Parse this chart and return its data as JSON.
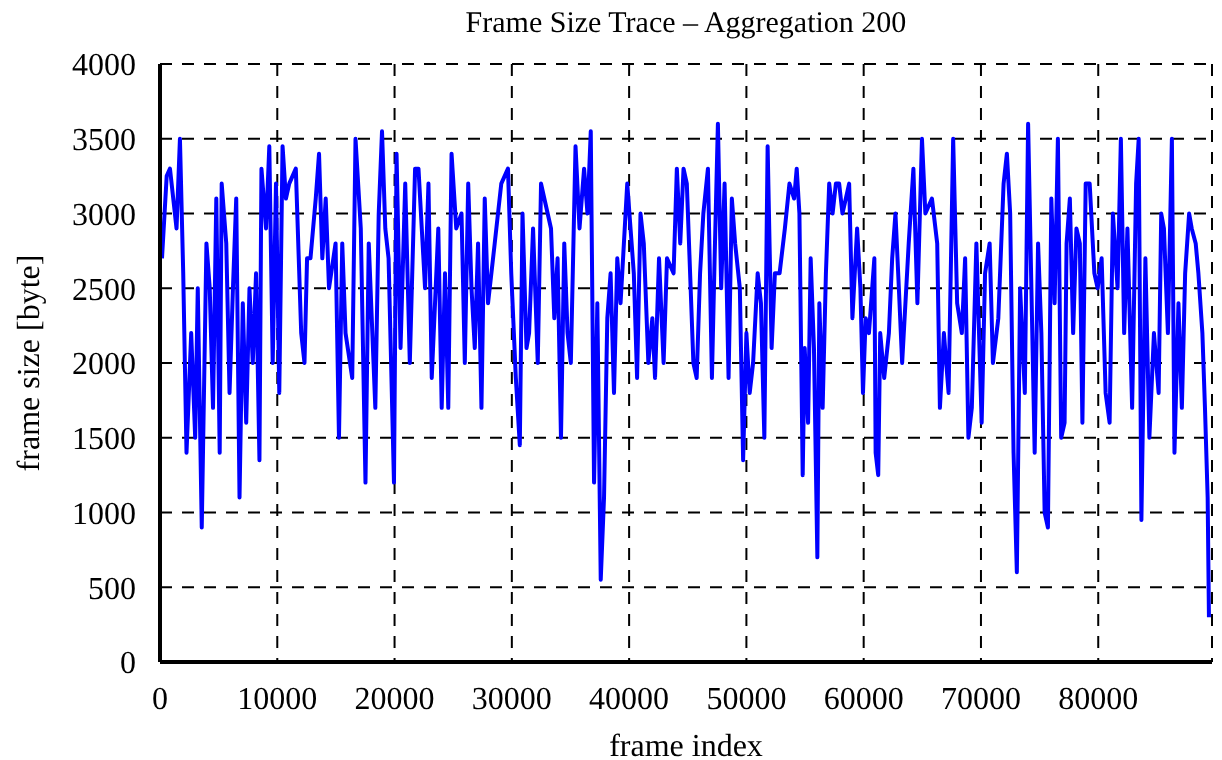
{
  "chart_data": {
    "type": "line",
    "title": "Frame Size Trace – Aggregation 200",
    "xlabel": "frame index",
    "ylabel": "frame size [byte]",
    "xlim": [
      0,
      89700
    ],
    "ylim": [
      0,
      4000
    ],
    "xticks": [
      0,
      10000,
      20000,
      30000,
      40000,
      50000,
      60000,
      70000,
      80000
    ],
    "yticks": [
      0,
      500,
      1000,
      1500,
      2000,
      2500,
      3000,
      3500,
      4000
    ],
    "grid": true,
    "legend": false,
    "marker": "none",
    "line_style": "solid",
    "series": [
      {
        "color": "#0000ff",
        "x": [
          170,
          570,
          850,
          1410,
          1700,
          1980,
          2260,
          2660,
          3000,
          3220,
          3560,
          3960,
          4240,
          4520,
          4800,
          5090,
          5260,
          5650,
          5930,
          6220,
          6500,
          6780,
          7060,
          7350,
          7630,
          7910,
          8190,
          8480,
          8650,
          9040,
          9320,
          9610,
          9890,
          10170,
          10450,
          10740,
          11020,
          11580,
          12040,
          12320,
          12540,
          12830,
          13280,
          13560,
          13840,
          14130,
          14410,
          14970,
          15260,
          15540,
          15820,
          16390,
          16670,
          17120,
          17520,
          17800,
          18360,
          18650,
          18930,
          19210,
          19490,
          19950,
          20170,
          20510,
          20910,
          21300,
          21750,
          22040,
          22600,
          22890,
          23170,
          23730,
          24020,
          24300,
          24580,
          24860,
          25260,
          25710,
          25990,
          26280,
          26560,
          26840,
          27120,
          27410,
          27690,
          27970,
          28540,
          29100,
          29670,
          29950,
          30340,
          30680,
          30910,
          31250,
          31470,
          31810,
          32210,
          32490,
          32770,
          33340,
          33620,
          33900,
          34190,
          34470,
          34750,
          35030,
          35430,
          35770,
          36160,
          36450,
          36730,
          37010,
          37290,
          37580,
          37860,
          38140,
          38420,
          38710,
          38990,
          39270,
          39840,
          40400,
          40680,
          40970,
          41250,
          41640,
          41980,
          42210,
          42550,
          42940,
          43230,
          43790,
          44070,
          44360,
          44640,
          44920,
          45480,
          45760,
          46050,
          46330,
          46720,
          47060,
          47290,
          47570,
          47850,
          48140,
          48480,
          48760,
          49040,
          49440,
          49720,
          50000,
          50280,
          50570,
          50960,
          51240,
          51530,
          51810,
          52150,
          52430,
          52830,
          53280,
          53670,
          54070,
          54290,
          54520,
          54800,
          54970,
          55260,
          55480,
          55760,
          56050,
          56220,
          56500,
          56780,
          57060,
          57350,
          57630,
          57910,
          58190,
          58480,
          58760,
          59040,
          59440,
          59720,
          59940,
          60170,
          60450,
          60910,
          61020,
          61240,
          61410,
          61750,
          62150,
          62430,
          62710,
          63000,
          63280,
          63840,
          64240,
          64580,
          64970,
          65260,
          65820,
          66270,
          66500,
          66840,
          67240,
          67630,
          67970,
          68370,
          68650,
          68930,
          69220,
          69610,
          70060,
          70350,
          70740,
          71020,
          71480,
          71930,
          72210,
          72490,
          72780,
          73060,
          73340,
          73740,
          74020,
          74300,
          74580,
          74870,
          75150,
          75430,
          75710,
          76000,
          76280,
          76560,
          76840,
          77130,
          77300,
          77580,
          77860,
          78140,
          78430,
          78650,
          78930,
          79270,
          79670,
          79950,
          80290,
          80630,
          80970,
          81250,
          81650,
          81930,
          82210,
          82490,
          82890,
          83230,
          83450,
          83680,
          84020,
          84360,
          84750,
          85150,
          85370,
          85600,
          85940,
          86280,
          86500,
          86840,
          87130,
          87410,
          87750,
          87970,
          88310,
          88540,
          88880,
          89100,
          89330,
          89440
        ],
        "values": [
          2700,
          3250,
          3300,
          2900,
          3500,
          2600,
          1400,
          2200,
          1500,
          2500,
          900,
          2800,
          2500,
          1700,
          3100,
          1400,
          3200,
          2800,
          1800,
          2500,
          3100,
          1100,
          2400,
          1600,
          2500,
          2000,
          2600,
          1350,
          3300,
          2900,
          3450,
          2000,
          3200,
          1800,
          3450,
          3100,
          3200,
          3300,
          2200,
          2000,
          2700,
          2700,
          3100,
          3400,
          2700,
          3100,
          2500,
          2800,
          1500,
          2800,
          2200,
          1900,
          3500,
          2900,
          1200,
          2800,
          1700,
          3000,
          3550,
          2900,
          2700,
          1200,
          3400,
          2100,
          3200,
          2000,
          3300,
          3300,
          2500,
          3200,
          1900,
          2900,
          1700,
          2600,
          1700,
          3400,
          2900,
          3000,
          2000,
          3200,
          2500,
          2100,
          2800,
          1700,
          3100,
          2400,
          2800,
          3200,
          3300,
          2600,
          1900,
          1450,
          3000,
          2100,
          2200,
          2900,
          2000,
          3200,
          3100,
          2900,
          2300,
          2700,
          1500,
          2800,
          2200,
          2000,
          3450,
          2900,
          3300,
          3000,
          3550,
          1200,
          2400,
          550,
          1100,
          2300,
          2600,
          1800,
          2700,
          2400,
          3200,
          2600,
          1900,
          3000,
          2800,
          2000,
          2300,
          1900,
          2700,
          2000,
          2700,
          2600,
          3300,
          2800,
          3300,
          3200,
          2000,
          1900,
          2600,
          3000,
          3300,
          1900,
          2700,
          3600,
          2500,
          3200,
          1900,
          3100,
          2800,
          2500,
          1350,
          2200,
          1800,
          2000,
          2600,
          2400,
          1500,
          3450,
          2100,
          2600,
          2600,
          2900,
          3200,
          3100,
          3300,
          3000,
          1250,
          2100,
          1600,
          2700,
          2100,
          700,
          2400,
          1700,
          2600,
          3200,
          3000,
          3200,
          3200,
          3000,
          3100,
          3200,
          2300,
          2900,
          2500,
          1800,
          2300,
          2200,
          2700,
          1400,
          1250,
          2200,
          1900,
          2200,
          2700,
          3000,
          2500,
          2000,
          2800,
          3300,
          2400,
          3500,
          3000,
          3100,
          2800,
          1700,
          2200,
          1800,
          3500,
          2400,
          2200,
          2700,
          1500,
          1700,
          2800,
          1600,
          2600,
          2800,
          2000,
          2300,
          3200,
          3400,
          3000,
          1400,
          600,
          2500,
          1800,
          3600,
          2500,
          1400,
          2800,
          2200,
          1000,
          900,
          3100,
          2400,
          3500,
          1500,
          1600,
          2800,
          3100,
          2200,
          2900,
          2800,
          1600,
          3200,
          3200,
          2600,
          2500,
          2700,
          1800,
          1600,
          3000,
          2500,
          3500,
          2200,
          2900,
          1700,
          3200,
          3500,
          950,
          2700,
          1500,
          2200,
          1800,
          3000,
          2900,
          2200,
          3500,
          1400,
          2400,
          1700,
          2600,
          3000,
          2900,
          2800,
          2600,
          2200,
          1700,
          1100,
          300
        ]
      }
    ]
  }
}
